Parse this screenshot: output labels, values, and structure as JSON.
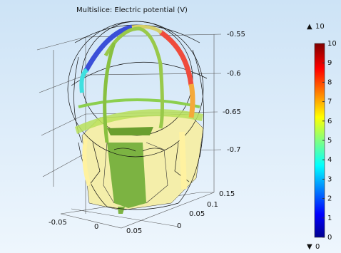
{
  "title": "Multislice: Electric potential (V)",
  "color_range": {
    "max": 10,
    "min": 0
  },
  "color_ticks": [
    0,
    1,
    2,
    3,
    4,
    5,
    6,
    7,
    8,
    9,
    10
  ],
  "axes": {
    "z_ticks": [
      -0.55,
      -0.6,
      -0.65,
      -0.7
    ],
    "y_ticks": [
      0.15,
      0.1,
      0.05,
      0
    ],
    "x_ticks": [
      -0.05,
      0,
      0.05
    ]
  }
}
